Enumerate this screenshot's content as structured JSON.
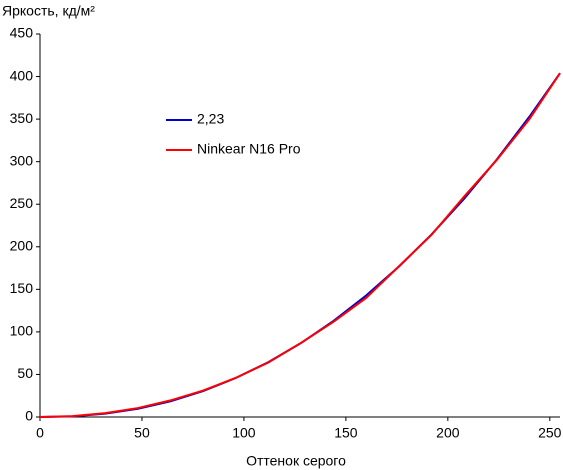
{
  "chart_data": {
    "type": "line",
    "y_label": "Яркость, кд/м²",
    "x_label": "Оттенок серого",
    "x": [
      0,
      16,
      32,
      48,
      64,
      80,
      96,
      112,
      128,
      144,
      160,
      176,
      192,
      208,
      224,
      240,
      255
    ],
    "series": [
      {
        "name": "2,23",
        "color": "#0000cc",
        "values": [
          0,
          0.8,
          4,
          9.7,
          18.5,
          30.5,
          45.8,
          64.5,
          86.9,
          113,
          142.9,
          176.7,
          214.5,
          256.5,
          302.6,
          352.9,
          404
        ]
      },
      {
        "name": "Ninkear N16 Pro",
        "color": "#ff0000",
        "values": [
          0,
          1,
          4.5,
          10.5,
          19.5,
          31,
          46,
          64,
          87,
          112,
          140,
          177,
          214,
          259,
          302,
          350,
          404
        ]
      }
    ],
    "xlim": [
      0,
      255
    ],
    "xticks": [
      0,
      50,
      100,
      150,
      200,
      250
    ],
    "ylim": [
      0,
      450
    ],
    "yticks": [
      0,
      50,
      100,
      150,
      200,
      250,
      300,
      350,
      400,
      450
    ],
    "grid": false
  }
}
